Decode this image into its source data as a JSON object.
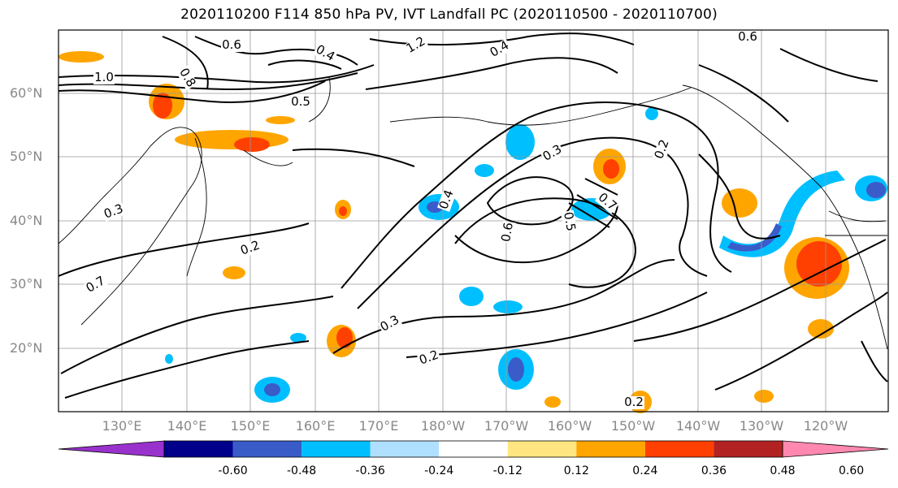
{
  "title": "2020110200 F114 850 hPa PV, IVT Landfall PC (2020110500 - 2020110700)",
  "lat_labels": [
    "60°N",
    "50°N",
    "40°N",
    "30°N",
    "20°N"
  ],
  "lon_labels": [
    "130°E",
    "140°E",
    "150°E",
    "160°E",
    "170°E",
    "180°W",
    "170°W",
    "160°W",
    "150°W",
    "140°W",
    "130°W",
    "120°W"
  ],
  "colorbar": {
    "ticks": [
      "-0.60",
      "-0.48",
      "-0.36",
      "-0.24",
      "-0.12",
      "0.12",
      "0.24",
      "0.36",
      "0.48",
      "0.60"
    ],
    "colors": [
      "#9932cc",
      "#00008b",
      "#3a5cc9",
      "#00bfff",
      "#b0e0ff",
      "#ffffff",
      "#ffe680",
      "#ffa500",
      "#ff4000",
      "#b22222",
      "#ff88b0"
    ]
  },
  "contour_labels": [
    "1.0",
    "0.8",
    "0.6",
    "0.4",
    "0.3",
    "0.2",
    "0.7",
    "0.5",
    "1.2",
    "0.6",
    "0.4",
    "0.3",
    "0.2",
    "0.7",
    "0.4",
    "0.5",
    "0.6",
    "0.2",
    "0.3",
    "0.2"
  ],
  "shading_colors": {
    "orange": "#ffa500",
    "red": "#ff4000",
    "yellow": "#ffe680",
    "lightblue": "#00bfff",
    "blue": "#3a5cc9",
    "paleblue": "#b0e0ff"
  }
}
